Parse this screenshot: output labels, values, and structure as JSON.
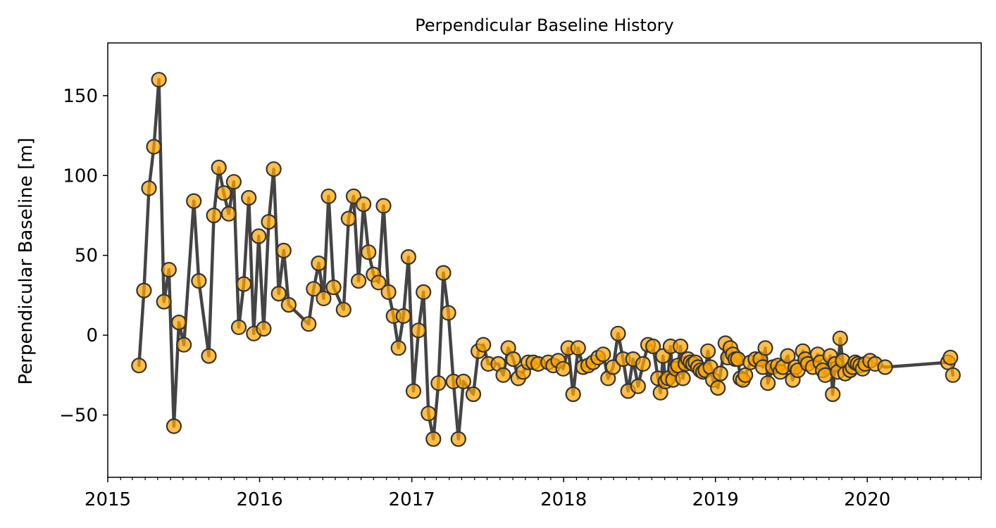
{
  "chart_data": {
    "type": "line",
    "title": "Perpendicular Baseline History",
    "xlabel": "",
    "ylabel": "Perpendicular Baseline [m]",
    "xlim": [
      "2015-01-01",
      "2020-10-01"
    ],
    "ylim": [
      -89,
      183
    ],
    "x_ticks": [
      "2015",
      "2016",
      "2017",
      "2018",
      "2019",
      "2020"
    ],
    "y_ticks": [
      -50,
      0,
      50,
      100,
      150
    ],
    "y_tick_labels": [
      "−50",
      "0",
      "50",
      "100",
      "150"
    ],
    "grid": false,
    "line_color": "#444444",
    "marker_color": "#ffa500",
    "marker_edge_color": "#333333",
    "series": [
      {
        "points": [
          [
            "2015-03-17",
            -19
          ],
          [
            "2015-03-29",
            28
          ],
          [
            "2015-04-10",
            92
          ],
          [
            "2015-04-22",
            118
          ],
          [
            "2015-05-04",
            160
          ],
          [
            "2015-05-16",
            21
          ],
          [
            "2015-05-28",
            41
          ],
          [
            "2015-06-09",
            -57
          ],
          [
            "2015-06-21",
            8
          ],
          [
            "2015-07-03",
            -6
          ],
          [
            "2015-07-27",
            84
          ],
          [
            "2015-08-08",
            34
          ],
          [
            "2015-09-01",
            -13
          ],
          [
            "2015-09-13",
            75
          ],
          [
            "2015-09-25",
            105
          ],
          [
            "2015-10-07",
            89
          ],
          [
            "2015-10-19",
            76
          ],
          [
            "2015-10-31",
            96
          ],
          [
            "2015-11-12",
            5
          ],
          [
            "2015-11-24",
            32
          ],
          [
            "2015-12-06",
            86
          ],
          [
            "2015-12-18",
            1
          ],
          [
            "2015-12-30",
            62
          ],
          [
            "2016-01-11",
            4
          ],
          [
            "2016-01-23",
            71
          ],
          [
            "2016-02-04",
            104
          ],
          [
            "2016-02-16",
            26
          ],
          [
            "2016-02-28",
            53
          ],
          [
            "2016-03-11",
            19
          ],
          [
            "2016-04-28",
            7
          ],
          [
            "2016-05-10",
            29
          ],
          [
            "2016-05-22",
            45
          ],
          [
            "2016-06-03",
            23
          ],
          [
            "2016-06-15",
            87
          ],
          [
            "2016-06-27",
            30
          ],
          [
            "2016-07-21",
            16
          ],
          [
            "2016-08-02",
            73
          ],
          [
            "2016-08-14",
            87
          ],
          [
            "2016-08-26",
            34
          ],
          [
            "2016-09-07",
            82
          ],
          [
            "2016-09-19",
            52
          ],
          [
            "2016-10-01",
            38
          ],
          [
            "2016-10-13",
            33
          ],
          [
            "2016-10-25",
            81
          ],
          [
            "2016-11-06",
            27
          ],
          [
            "2016-11-18",
            12
          ],
          [
            "2016-11-30",
            -8
          ],
          [
            "2016-12-12",
            12
          ],
          [
            "2016-12-24",
            49
          ],
          [
            "2017-01-05",
            -35
          ],
          [
            "2017-01-17",
            3
          ],
          [
            "2017-01-29",
            27
          ],
          [
            "2017-02-10",
            -49
          ],
          [
            "2017-02-22",
            -65
          ],
          [
            "2017-03-06",
            -30
          ],
          [
            "2017-03-18",
            39
          ],
          [
            "2017-03-30",
            14
          ],
          [
            "2017-04-11",
            -29
          ],
          [
            "2017-04-23",
            -65
          ],
          [
            "2017-05-05",
            -29
          ],
          [
            "2017-05-29",
            -37
          ],
          [
            "2017-06-10",
            -10
          ],
          [
            "2017-06-22",
            -6
          ],
          [
            "2017-07-04",
            -18
          ],
          [
            "2017-07-28",
            -18
          ],
          [
            "2017-08-09",
            -25
          ],
          [
            "2017-08-21",
            -8
          ],
          [
            "2017-09-02",
            -15
          ],
          [
            "2017-09-14",
            -27
          ],
          [
            "2017-09-26",
            -23
          ],
          [
            "2017-10-08",
            -17
          ],
          [
            "2017-10-20",
            -17
          ],
          [
            "2017-11-01",
            -18
          ],
          [
            "2017-11-25",
            -17
          ],
          [
            "2017-12-07",
            -19
          ],
          [
            "2017-12-19",
            -16
          ],
          [
            "2017-12-31",
            -21
          ],
          [
            "2018-01-12",
            -8
          ],
          [
            "2018-01-24",
            -37
          ],
          [
            "2018-02-05",
            -8
          ],
          [
            "2018-02-17",
            -20
          ],
          [
            "2018-03-01",
            -19
          ],
          [
            "2018-03-13",
            -17
          ],
          [
            "2018-03-25",
            -14
          ],
          [
            "2018-04-06",
            -12
          ],
          [
            "2018-04-18",
            -27
          ],
          [
            "2018-04-30",
            -20
          ],
          [
            "2018-05-12",
            1
          ],
          [
            "2018-05-24",
            -15
          ],
          [
            "2018-06-05",
            -35
          ],
          [
            "2018-06-17",
            -15
          ],
          [
            "2018-06-29",
            -32
          ],
          [
            "2018-07-11",
            -18
          ],
          [
            "2018-07-23",
            -6
          ],
          [
            "2018-08-04",
            -7
          ],
          [
            "2018-08-16",
            -27
          ],
          [
            "2018-08-22",
            -36
          ],
          [
            "2018-08-28",
            -13
          ],
          [
            "2018-09-03",
            -29
          ],
          [
            "2018-09-09",
            -27
          ],
          [
            "2018-09-15",
            -7
          ],
          [
            "2018-09-21",
            -28
          ],
          [
            "2018-09-27",
            -21
          ],
          [
            "2018-10-03",
            -19
          ],
          [
            "2018-10-09",
            -7
          ],
          [
            "2018-10-15",
            -27
          ],
          [
            "2018-10-21",
            -18
          ],
          [
            "2018-10-27",
            -15
          ],
          [
            "2018-11-02",
            -17
          ],
          [
            "2018-11-08",
            -18
          ],
          [
            "2018-11-14",
            -17
          ],
          [
            "2018-11-20",
            -20
          ],
          [
            "2018-11-26",
            -22
          ],
          [
            "2018-12-02",
            -23
          ],
          [
            "2018-12-08",
            -22
          ],
          [
            "2018-12-14",
            -10
          ],
          [
            "2018-12-20",
            -20
          ],
          [
            "2018-12-26",
            -28
          ],
          [
            "2019-01-07",
            -33
          ],
          [
            "2019-01-13",
            -24
          ],
          [
            "2019-01-25",
            -5
          ],
          [
            "2019-01-31",
            -14
          ],
          [
            "2019-02-06",
            -8
          ],
          [
            "2019-02-12",
            -12
          ],
          [
            "2019-02-18",
            -15
          ],
          [
            "2019-02-24",
            -15
          ],
          [
            "2019-03-02",
            -27
          ],
          [
            "2019-03-08",
            -28
          ],
          [
            "2019-03-14",
            -25
          ],
          [
            "2019-03-26",
            -17
          ],
          [
            "2019-04-07",
            -15
          ],
          [
            "2019-04-19",
            -15
          ],
          [
            "2019-04-25",
            -20
          ],
          [
            "2019-05-01",
            -8
          ],
          [
            "2019-05-07",
            -30
          ],
          [
            "2019-05-19",
            -20
          ],
          [
            "2019-05-31",
            -19
          ],
          [
            "2019-06-06",
            -23
          ],
          [
            "2019-06-12",
            -20
          ],
          [
            "2019-06-24",
            -13
          ],
          [
            "2019-07-06",
            -28
          ],
          [
            "2019-07-12",
            -20
          ],
          [
            "2019-07-18",
            -22
          ],
          [
            "2019-07-30",
            -10
          ],
          [
            "2019-08-05",
            -15
          ],
          [
            "2019-08-11",
            -18
          ],
          [
            "2019-08-23",
            -20
          ],
          [
            "2019-09-04",
            -12
          ],
          [
            "2019-09-10",
            -17
          ],
          [
            "2019-09-16",
            -22
          ],
          [
            "2019-09-22",
            -25
          ],
          [
            "2019-10-04",
            -13
          ],
          [
            "2019-10-10",
            -37
          ],
          [
            "2019-10-16",
            -18
          ],
          [
            "2019-10-22",
            -23
          ],
          [
            "2019-10-28",
            -2
          ],
          [
            "2019-11-03",
            -16
          ],
          [
            "2019-11-09",
            -24
          ],
          [
            "2019-11-21",
            -22
          ],
          [
            "2019-11-27",
            -20
          ],
          [
            "2019-12-03",
            -17
          ],
          [
            "2019-12-09",
            -18
          ],
          [
            "2019-12-15",
            -19
          ],
          [
            "2019-12-21",
            -21
          ],
          [
            "2019-12-27",
            -18
          ],
          [
            "2020-01-08",
            -16
          ],
          [
            "2020-01-20",
            -18
          ],
          [
            "2020-02-13",
            -20
          ],
          [
            "2020-07-13",
            -17
          ],
          [
            "2020-07-19",
            -14
          ],
          [
            "2020-07-25",
            -25
          ]
        ]
      }
    ]
  }
}
